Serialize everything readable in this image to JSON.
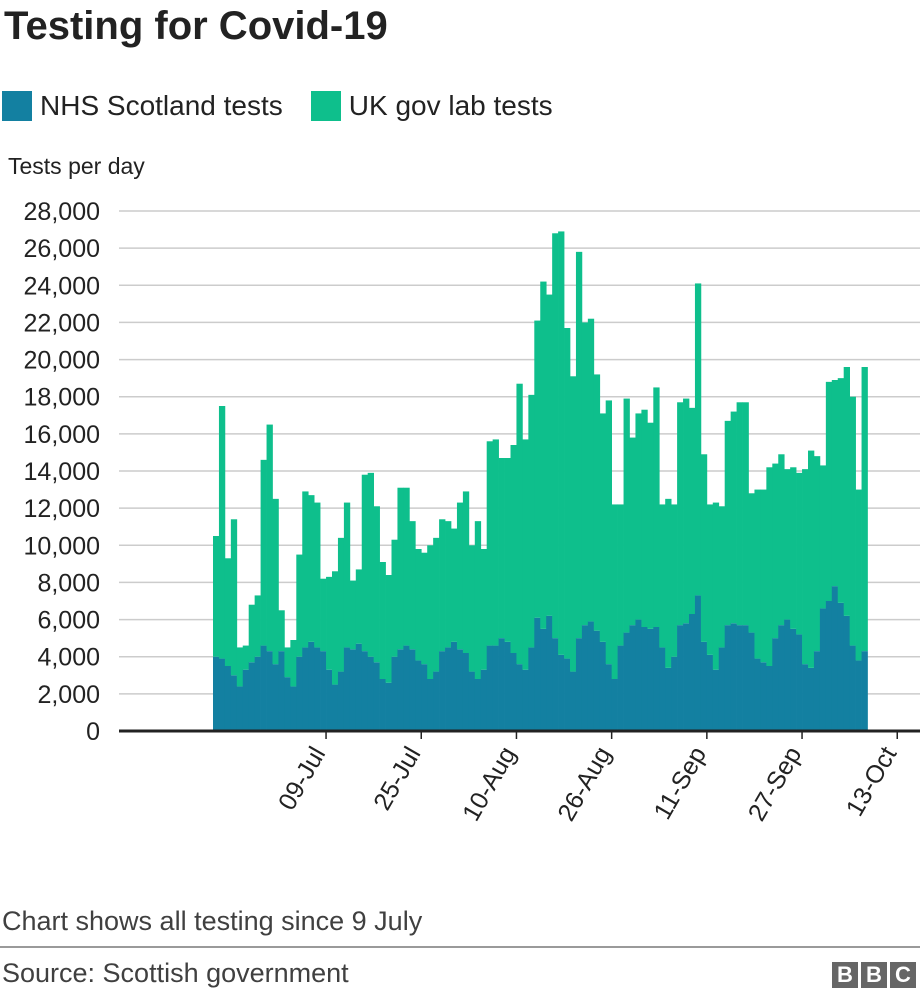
{
  "header": {
    "title": "Testing for Covid-19"
  },
  "legend": [
    {
      "label": "NHS Scotland tests",
      "color": "#1380a1"
    },
    {
      "label": "UK gov lab tests",
      "color": "#0ebf8c"
    }
  ],
  "footer": {
    "note": "Chart shows all testing since 9 July",
    "source": "Source: Scottish government",
    "logo": [
      "B",
      "B",
      "C"
    ]
  },
  "chart_data": {
    "type": "bar",
    "stacked": true,
    "title": "Testing for Covid-19",
    "xlabel": "",
    "ylabel": "Tests per day",
    "ylim": [
      0,
      28000
    ],
    "yticks": [
      0,
      2000,
      4000,
      6000,
      8000,
      10000,
      12000,
      14000,
      16000,
      18000,
      20000,
      22000,
      24000,
      26000,
      28000
    ],
    "ytick_labels": [
      "0",
      "2,000",
      "4,000",
      "6,000",
      "8,000",
      "10,000",
      "12,000",
      "14,000",
      "16,000",
      "18,000",
      "20,000",
      "22,000",
      "24,000",
      "26,000",
      "28,000"
    ],
    "x_start_day_index": 6,
    "x_end_day_index": 125,
    "x_tick_day_index": [
      25,
      41,
      57,
      73,
      89,
      105,
      121
    ],
    "x_tick_labels": [
      "09-Jul",
      "25-Jul",
      "10-Aug",
      "26-Aug",
      "11-Sep",
      "27-Sep",
      "13-Oct"
    ],
    "grid": true,
    "legend_position": "top-left",
    "series": [
      {
        "name": "NHS Scotland tests",
        "color": "#1380a1",
        "values": [
          4000,
          3900,
          3500,
          3000,
          2400,
          3300,
          3700,
          4000,
          4600,
          4300,
          3600,
          4300,
          2900,
          2400,
          4000,
          4500,
          4800,
          4500,
          4300,
          3300,
          2500,
          3200,
          4500,
          4400,
          4700,
          4300,
          4000,
          3700,
          2800,
          2600,
          4000,
          4400,
          4600,
          4400,
          3800,
          3600,
          2800,
          3200,
          4300,
          4500,
          4800,
          4400,
          4200,
          3200,
          2800,
          3300,
          4600,
          4600,
          5000,
          4800,
          4200,
          3600,
          3300,
          4500,
          6100,
          5500,
          6200,
          5000,
          4100,
          3900,
          3200,
          5000,
          5700,
          5900,
          5400,
          4800,
          3600,
          2800,
          4600,
          5300,
          5700,
          6000,
          5600,
          5500,
          5600,
          4500,
          3400,
          4000,
          5700,
          5800,
          6300,
          7300,
          4800,
          4100,
          3300,
          4500,
          5700,
          5800,
          5700,
          5700,
          5300,
          3900,
          3700,
          3500,
          5000,
          5700,
          6000,
          5500,
          5200,
          3600,
          3400,
          4300,
          6600,
          7000,
          7800,
          6900,
          6200,
          4600,
          3800,
          4300
        ]
      },
      {
        "name": "UK gov lab tests",
        "color": "#0ebf8c",
        "values": [
          6500,
          13600,
          5800,
          8400,
          2100,
          1300,
          3100,
          3300,
          10000,
          12200,
          8900,
          2200,
          1600,
          2500,
          5500,
          8400,
          7900,
          7800,
          3900,
          5000,
          6100,
          7200,
          7800,
          3700,
          4000,
          9500,
          9900,
          8400,
          6300,
          5800,
          6300,
          8700,
          8500,
          6900,
          6000,
          6000,
          7200,
          7200,
          7100,
          6800,
          6100,
          7900,
          8700,
          6800,
          8500,
          6500,
          11000,
          11100,
          9700,
          9900,
          11200,
          15100,
          12400,
          13600,
          16000,
          18700,
          17300,
          21800,
          22800,
          17800,
          15900,
          20800,
          16300,
          16300,
          13800,
          12300,
          14200,
          9400,
          7600,
          12600,
          10100,
          11100,
          11700,
          11100,
          12900,
          7700,
          9100,
          8200,
          12000,
          12100,
          11100,
          16800,
          10100,
          8100,
          9000,
          7600,
          11000,
          11400,
          12000,
          12000,
          7500,
          9100,
          9300,
          10700,
          9400,
          9200,
          8100,
          8700,
          8700,
          10500,
          11700,
          10500,
          7700,
          11800,
          11100,
          12100,
          13400,
          13400,
          9200,
          15300
        ]
      }
    ]
  }
}
